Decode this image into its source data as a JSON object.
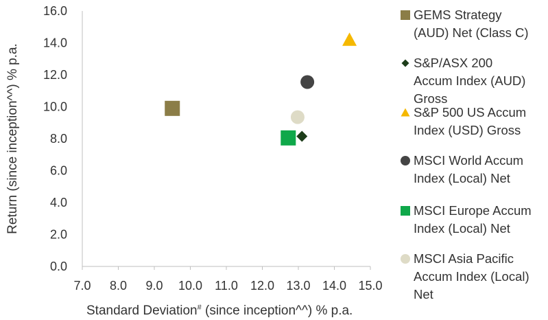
{
  "chart_data": {
    "type": "scatter",
    "xlabel_main": "Standard Deviation",
    "xlabel_sup": "#",
    "xlabel_rest": " (since inception^^) % p.a.",
    "ylabel": "Return (since inception^^) % p.a.",
    "xlim": [
      7.0,
      15.0
    ],
    "ylim": [
      0.0,
      16.0
    ],
    "xticks": [
      "7.0",
      "8.0",
      "9.0",
      "10.0",
      "11.0",
      "12.0",
      "13.0",
      "14.0",
      "15.0"
    ],
    "yticks": [
      "0.0",
      "2.0",
      "4.0",
      "6.0",
      "8.0",
      "10.0",
      "12.0",
      "14.0",
      "16.0"
    ],
    "grid": false,
    "legend_placement": "right",
    "series": [
      {
        "name": "GEMS Strategy (AUD) Net (Class C)",
        "label_lines": [
          "GEMS Strategy",
          "(AUD) Net (Class C)"
        ],
        "marker": "square",
        "color": "#8b7d47",
        "x": 9.5,
        "y": 9.9
      },
      {
        "name": "S&P/ASX 200 Accum Index (AUD) Gross",
        "label_lines": [
          "S&P/ASX 200",
          "Accum Index (AUD)",
          "Gross"
        ],
        "marker": "diamond",
        "color": "#1d3d1a",
        "x": 13.1,
        "y": 8.15
      },
      {
        "name": "S&P 500 US Accum Index (USD) Gross",
        "label_lines": [
          "S&P 500 US Accum",
          "Index (USD) Gross"
        ],
        "marker": "triangle",
        "color": "#f5b800",
        "x": 14.42,
        "y": 14.2
      },
      {
        "name": "MSCI World Accum Index (Local) Net",
        "label_lines": [
          "MSCI World Accum",
          "Index (Local) Net"
        ],
        "marker": "circle",
        "color": "#444444",
        "x": 13.25,
        "y": 11.55
      },
      {
        "name": "MSCI Europe Accum Index (Local) Net",
        "label_lines": [
          "MSCI Europe Accum",
          "Index (Local) Net"
        ],
        "marker": "square",
        "color": "#0fa84a",
        "x": 12.72,
        "y": 8.05
      },
      {
        "name": "MSCI Asia Pacific Accum Index (Local) Net",
        "label_lines": [
          "MSCI Asia Pacific",
          "Accum Index (Local)",
          "Net"
        ],
        "marker": "circle",
        "color": "#dedbc6",
        "x": 12.98,
        "y": 9.35
      }
    ]
  }
}
